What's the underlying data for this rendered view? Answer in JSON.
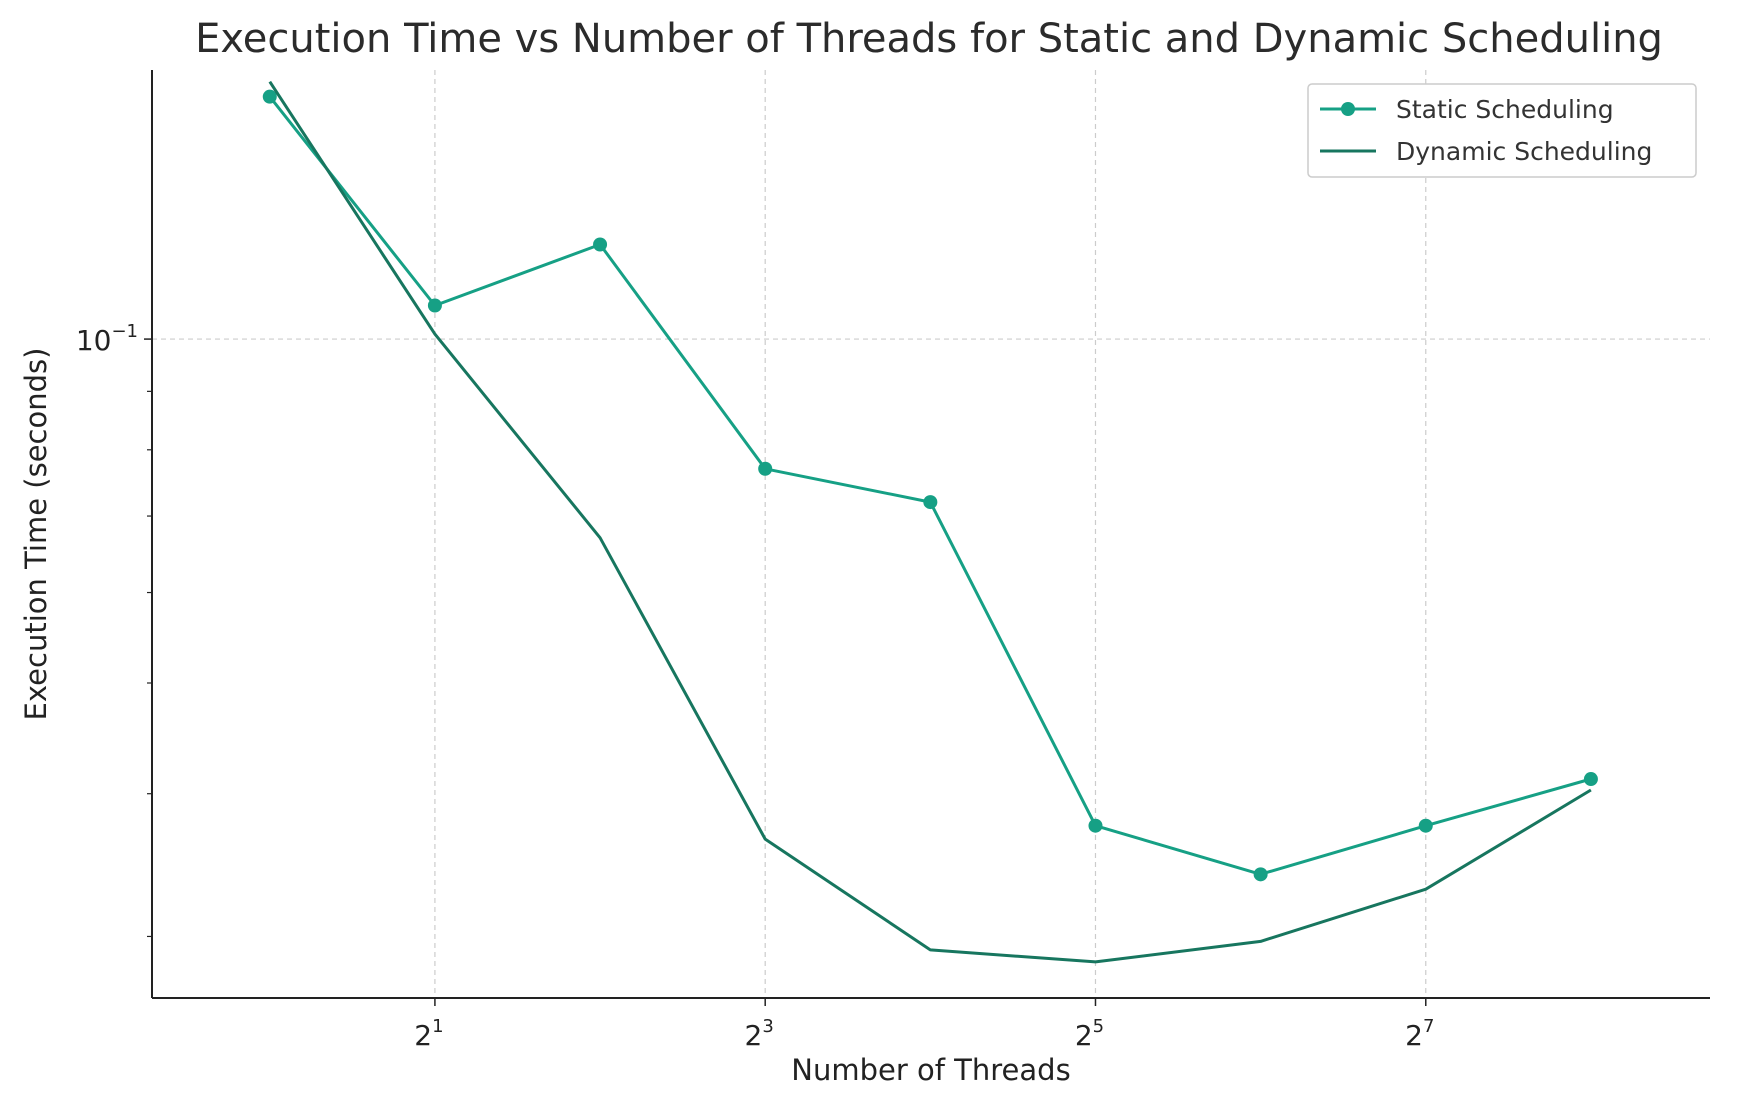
{
  "chart_data": {
    "type": "line",
    "title": "Execution Time vs Number of Threads for Static and Dynamic Scheduling",
    "xlabel": "Number of Threads",
    "ylabel": "Execution Time (seconds)",
    "x_scale": "log2",
    "y_scale": "log10",
    "x": [
      1,
      2,
      4,
      8,
      16,
      32,
      64,
      128,
      256
    ],
    "xlim": [
      0.61,
      422
    ],
    "ylim": [
      0.0265,
      0.172
    ],
    "x_ticks": [
      {
        "value": 2,
        "base": "2",
        "exp": "1"
      },
      {
        "value": 8,
        "base": "2",
        "exp": "3"
      },
      {
        "value": 32,
        "base": "2",
        "exp": "5"
      },
      {
        "value": 128,
        "base": "2",
        "exp": "7"
      }
    ],
    "y_major_ticks": [
      {
        "value": 0.1,
        "base": "10",
        "exp": "−1"
      }
    ],
    "y_minor_ticks": [
      0.03,
      0.04,
      0.05,
      0.06,
      0.07,
      0.08,
      0.09
    ],
    "grid": true,
    "legend_position": "top-right",
    "series": [
      {
        "name": "Static Scheduling",
        "values": [
          0.163,
          0.107,
          0.121,
          0.077,
          0.072,
          0.0375,
          0.034,
          0.0375,
          0.0412
        ],
        "color": "#16a085",
        "marker": "circle"
      },
      {
        "name": "Dynamic Scheduling",
        "values": [
          0.168,
          0.101,
          0.067,
          0.0365,
          0.0292,
          0.0285,
          0.0297,
          0.033,
          0.0403
        ],
        "color": "#17765f",
        "marker": "none"
      }
    ]
  }
}
